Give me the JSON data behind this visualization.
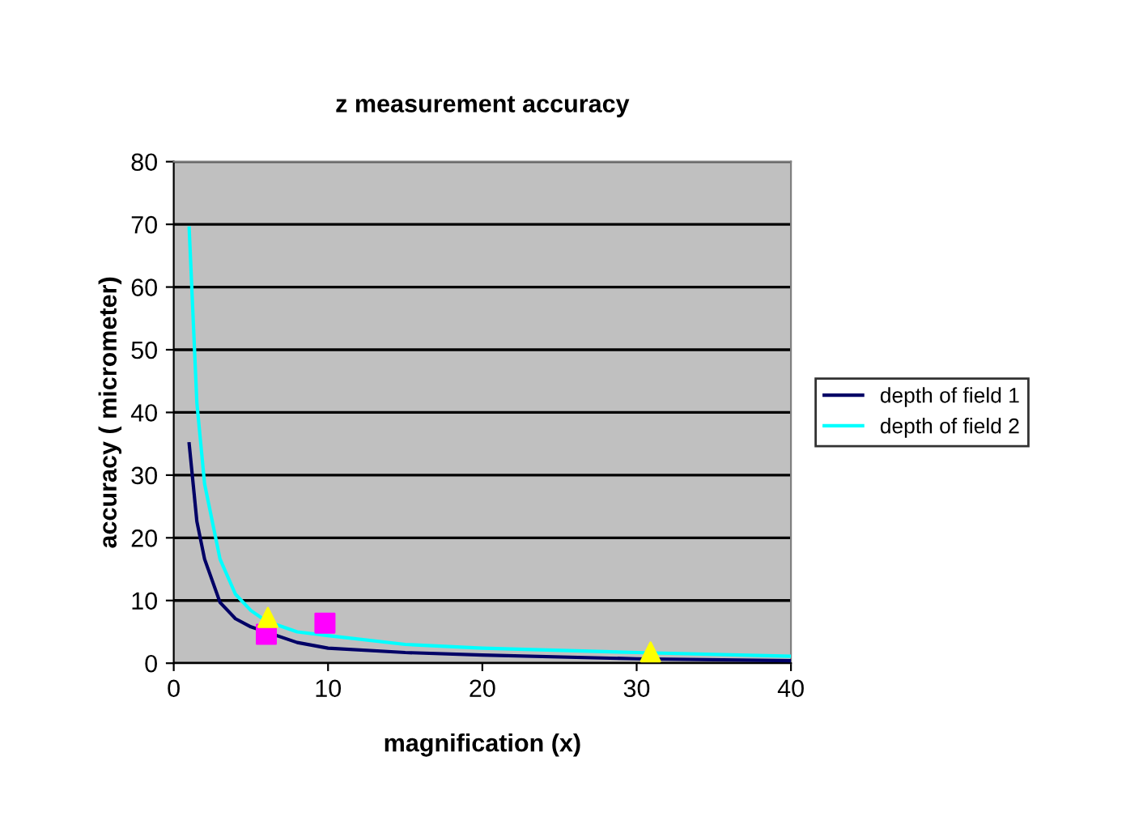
{
  "chart_data": {
    "type": "line",
    "title": "z measurement accuracy",
    "xlabel": "magnification (x)",
    "ylabel": "accuracy ( micrometer)",
    "xlim": [
      0,
      40
    ],
    "xticks": [
      0,
      10,
      20,
      30,
      40
    ],
    "ylim": [
      0,
      80
    ],
    "yticks": [
      0,
      10,
      20,
      30,
      40,
      50,
      60,
      70,
      80
    ],
    "grid": "y",
    "legend": "right",
    "series": [
      {
        "name": "depth of field 1",
        "color": "#000066",
        "marker": "none",
        "x": [
          1,
          1.5,
          2,
          3,
          4,
          5,
          8,
          10,
          15,
          20,
          30,
          40
        ],
        "values": [
          35,
          22.6,
          16.6,
          9.7,
          7.1,
          5.8,
          3.3,
          2.4,
          1.7,
          1.3,
          0.7,
          0.4
        ]
      },
      {
        "name": "depth of field 2",
        "color": "#00ffff",
        "marker": "none",
        "x": [
          1,
          1.5,
          2,
          3,
          4,
          5,
          6,
          8,
          10,
          15,
          20,
          30,
          40
        ],
        "values": [
          69.4,
          41.5,
          28.6,
          16.6,
          11,
          8.4,
          6.7,
          5,
          4.4,
          3,
          2.4,
          1.7,
          1.1
        ]
      },
      {
        "color": "#ff00ff",
        "type": "scatter",
        "marker": "square",
        "x": [
          6,
          9.8
        ],
        "values": [
          4.6,
          6.4
        ]
      },
      {
        "color": "#ffff00",
        "type": "scatter",
        "marker": "triangle",
        "x": [
          6.1,
          30.9
        ],
        "values": [
          7.3,
          1.8
        ]
      }
    ]
  }
}
